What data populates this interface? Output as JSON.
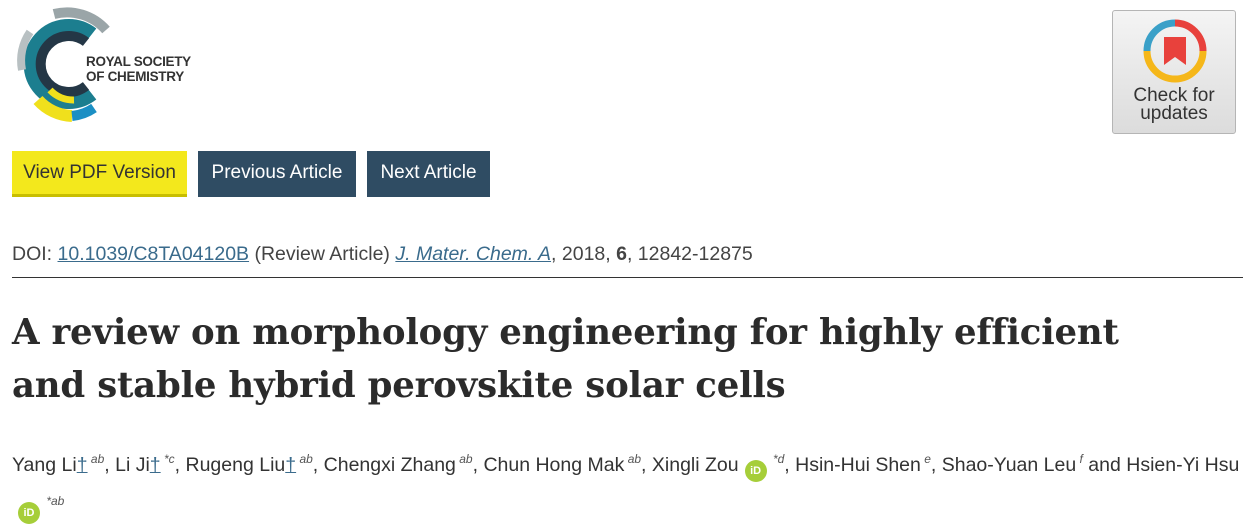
{
  "publisher": {
    "logo_line1": "ROYAL SOCIETY",
    "logo_line2": "OF CHEMISTRY",
    "colors": {
      "teal": "#1c7e8f",
      "dark": "#243746",
      "yellow": "#f0e01c",
      "blue": "#1b8fc4"
    }
  },
  "check_for_updates": {
    "line1": "Check for",
    "line2": "updates",
    "icon": "check-for-updates-icon"
  },
  "actions": {
    "pdf": "View PDF Version",
    "previous": "Previous Article",
    "next": "Next Article"
  },
  "citation": {
    "doi_label": "DOI:",
    "doi": "10.1039/C8TA04120B",
    "type": "(Review Article)",
    "journal": "J. Mater. Chem. A",
    "year": ", 2018,",
    "volume": "6",
    "pages": ", 12842-12875"
  },
  "article": {
    "title_line1": "A review on morphology engineering for highly efficient",
    "title_line2": "and stable hybrid perovskite solar cells"
  },
  "authors": [
    {
      "name": "Yang Li",
      "dagger": "†",
      "sup": "ab",
      "sep": ","
    },
    {
      "name": "Li Ji",
      "dagger": "†",
      "sup": "*c",
      "sep": ","
    },
    {
      "name": "Rugeng Liu",
      "dagger": "†",
      "sup": "ab",
      "sep": ","
    },
    {
      "name": "Chengxi Zhang",
      "sup": "ab",
      "sep": ","
    },
    {
      "name": "Chun Hong Mak",
      "sup": "ab",
      "sep": ","
    },
    {
      "name": "Xingli Zou",
      "orcid": "iD",
      "sup": "*d",
      "sep": ","
    },
    {
      "name": "Hsin-Hui Shen",
      "sup": "e",
      "sep": ","
    },
    {
      "name": "Shao-Yuan Leu",
      "sup": "f",
      "sep": " and"
    },
    {
      "name": "Hsien-Yi Hsu",
      "orcid": "iD",
      "sup": "*ab",
      "sep": ""
    }
  ]
}
